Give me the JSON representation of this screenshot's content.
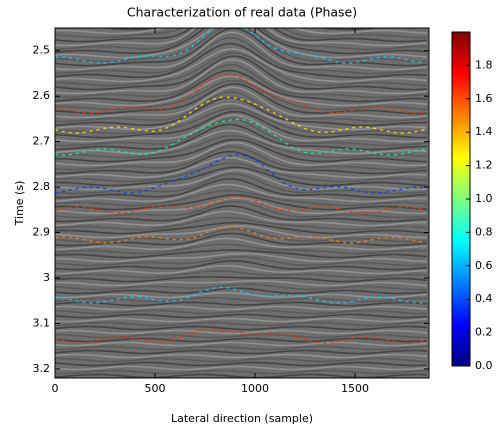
{
  "chart_data": {
    "type": "image",
    "title": "Characterization of real data (Phase)",
    "xlabel": "Lateral direction (sample)",
    "ylabel": "Time (s)",
    "xlim": [
      0,
      1870
    ],
    "xticks": [
      0,
      500,
      1000,
      1500
    ],
    "ylim": [
      2.45,
      3.22
    ],
    "y_inverted": true,
    "yticks": [
      2.5,
      2.6,
      2.7,
      2.8,
      2.9,
      3.0,
      3.1,
      3.2
    ],
    "colorbar": {
      "colormap": "jet",
      "clim": [
        0,
        2
      ],
      "ticks": [
        0.0,
        0.2,
        0.4,
        0.6,
        0.8,
        1.0,
        1.2,
        1.4,
        1.6,
        1.8
      ]
    }
  }
}
